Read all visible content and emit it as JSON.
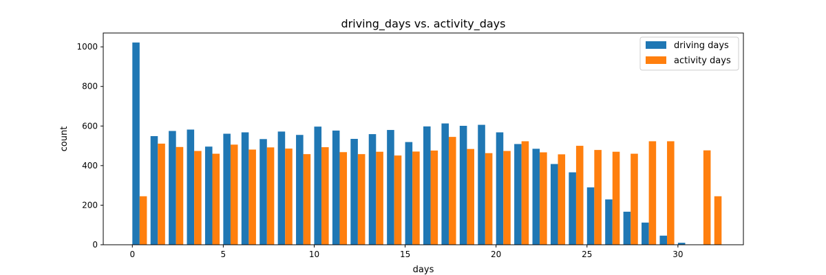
{
  "chart_data": {
    "type": "bar",
    "title": "driving_days vs. activity_days",
    "xlabel": "days",
    "ylabel": "count",
    "xlim": [
      -1.6,
      33.6
    ],
    "ylim": [
      0,
      1070
    ],
    "xticks": [
      0,
      5,
      10,
      15,
      20,
      25,
      30
    ],
    "yticks": [
      0,
      200,
      400,
      600,
      800,
      1000
    ],
    "grid": false,
    "legend_position": "top-right",
    "x": [
      0,
      1,
      2,
      3,
      4,
      5,
      6,
      7,
      8,
      9,
      10,
      11,
      12,
      13,
      14,
      15,
      16,
      17,
      18,
      19,
      20,
      21,
      22,
      23,
      24,
      25,
      26,
      27,
      28,
      29,
      30,
      31
    ],
    "series": [
      {
        "name": "driving days",
        "color": "#1f77b4",
        "values": [
          1022,
          549,
          575,
          582,
          496,
          561,
          568,
          534,
          572,
          555,
          597,
          577,
          535,
          559,
          580,
          519,
          598,
          613,
          601,
          606,
          568,
          509,
          485,
          408,
          366,
          290,
          229,
          167,
          112,
          46,
          10,
          0
        ]
      },
      {
        "name": "activity days",
        "color": "#ff7f0e",
        "values": [
          245,
          511,
          494,
          474,
          460,
          506,
          481,
          492,
          486,
          458,
          493,
          468,
          458,
          470,
          451,
          471,
          476,
          545,
          484,
          463,
          474,
          523,
          467,
          457,
          500,
          479,
          470,
          460,
          523,
          523,
          0,
          477
        ]
      }
    ],
    "extra_activity_point": {
      "x": 32,
      "value": 245
    }
  }
}
